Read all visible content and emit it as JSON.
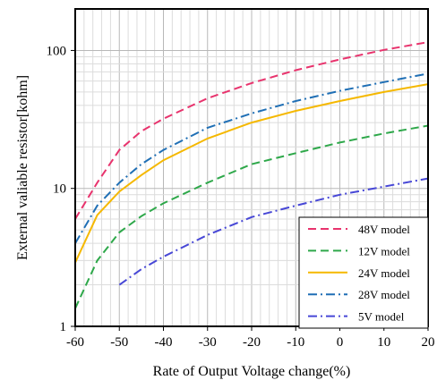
{
  "chart_data": {
    "type": "line",
    "title": "",
    "xlabel": "Rate of Output Voltage change(%)",
    "ylabel": "External valiable resistor[kohm]",
    "x_scale": "linear",
    "y_scale": "log",
    "xlim": [
      -60,
      20
    ],
    "ylim": [
      1,
      200
    ],
    "x_ticks": [
      -60,
      -50,
      -40,
      -30,
      -20,
      -10,
      0,
      10,
      20
    ],
    "y_ticks": [
      1,
      10,
      100
    ],
    "x_tick_labels": [
      "-60",
      "-50",
      "-40",
      "-30",
      "-20",
      "-10",
      "0",
      "10",
      "20"
    ],
    "y_tick_labels": [
      "1",
      "10",
      "100"
    ],
    "grid": true,
    "legend_position": "bottom-right",
    "series": [
      {
        "name": "48V model",
        "color": "#e8336d",
        "dash": "dashed",
        "x": [
          -60,
          -55,
          -50,
          -45,
          -40,
          -30,
          -20,
          -10,
          0,
          10,
          20
        ],
        "y": [
          6,
          11,
          19,
          26,
          32,
          45,
          58,
          72,
          86,
          101,
          115
        ]
      },
      {
        "name": "12V model",
        "color": "#2ea84a",
        "dash": "dashed",
        "x": [
          -60,
          -55,
          -50,
          -45,
          -40,
          -30,
          -20,
          -10,
          0,
          10,
          20
        ],
        "y": [
          1.35,
          3,
          4.8,
          6.3,
          7.8,
          11,
          15,
          18,
          21.5,
          25,
          28.5
        ]
      },
      {
        "name": "24V model",
        "color": "#f5b800",
        "dash": "solid",
        "x": [
          -60,
          -55,
          -50,
          -45,
          -40,
          -30,
          -20,
          -10,
          0,
          10,
          20
        ],
        "y": [
          2.9,
          6.4,
          9.5,
          12.5,
          16,
          23,
          30,
          36.5,
          43,
          50,
          57
        ]
      },
      {
        "name": "28V model",
        "color": "#1f6fb5",
        "dash": "dash-dot",
        "x": [
          -60,
          -55,
          -50,
          -45,
          -40,
          -30,
          -20,
          -10,
          0,
          10,
          20
        ],
        "y": [
          4,
          7.5,
          11,
          15,
          19,
          27.5,
          35,
          43,
          51,
          59,
          68
        ]
      },
      {
        "name": "5V model",
        "color": "#4747d6",
        "dash": "dash-dot",
        "x": [
          -50,
          -45,
          -40,
          -30,
          -20,
          -10,
          0,
          10,
          20
        ],
        "y": [
          2,
          2.6,
          3.2,
          4.6,
          6.2,
          7.5,
          9,
          10.3,
          11.8
        ]
      }
    ]
  }
}
